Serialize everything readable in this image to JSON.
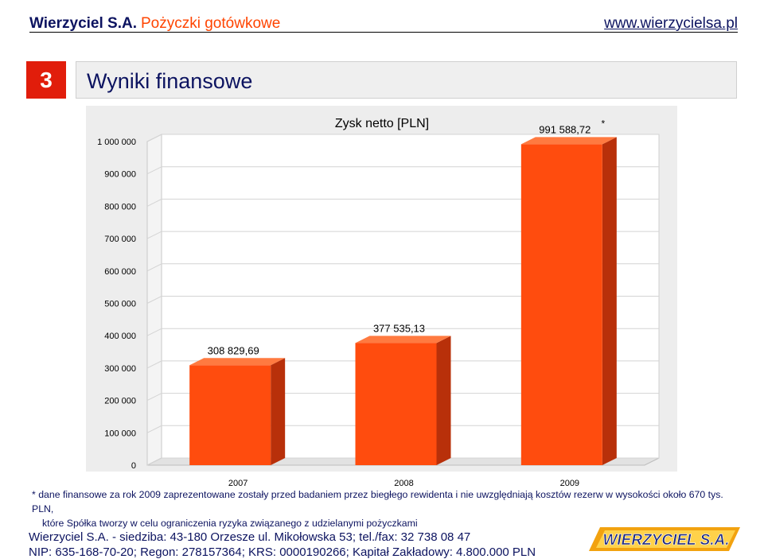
{
  "header": {
    "brand": "Wierzyciel S.A.",
    "tagline": "Pożyczki gotówkowe",
    "website": "www.wierzycielsa.pl"
  },
  "section": {
    "number": "3",
    "title": "Wyniki finansowe"
  },
  "chart_data": {
    "type": "bar",
    "title": "Zysk netto [PLN]",
    "categories": [
      "2007",
      "2008",
      "2009"
    ],
    "values": [
      308829.69,
      377535.13,
      991588.72
    ],
    "value_labels": [
      "308 829,69",
      "377 535,13",
      "991 588,72"
    ],
    "asterisk": "*",
    "ylim": [
      0,
      1000000
    ],
    "yticks": [
      0,
      100000,
      200000,
      300000,
      400000,
      500000,
      600000,
      700000,
      800000,
      900000,
      1000000
    ],
    "ytick_labels": [
      "0",
      "100 000",
      "200 000",
      "300 000",
      "400 000",
      "500 000",
      "600 000",
      "700 000",
      "800 000",
      "900 000",
      "1 000 000"
    ],
    "grid": true,
    "style": "3d",
    "bar_color": "#ff4c0e",
    "bar_side_color": "#b8300a",
    "bar_top_color": "#ff7a40"
  },
  "footnote": {
    "line1": "* dane finansowe za rok 2009 zaprezentowane zostały przed badaniem przez biegłego rewidenta i nie uwzględniają kosztów rezerw w wysokości około 670 tys. PLN,",
    "line2": "które Spółka tworzy w celu ograniczenia ryzyka związanego z udzielanymi pożyczkami"
  },
  "footer": {
    "line1": "Wierzyciel S.A. - siedziba: 43-180 Orzesze ul. Mikołowska 53; tel./fax: 32 738 08 47",
    "line2": "NIP: 635-168-70-20; Regon: 278157364; KRS: 0000190266; Kapitał Zakładowy: 4.800.000 PLN"
  },
  "logo": {
    "text": "WIERZYCIEL S.A."
  },
  "colors": {
    "navy": "#0c1360",
    "accent": "#ff4400",
    "section_red": "#e11d0b"
  }
}
